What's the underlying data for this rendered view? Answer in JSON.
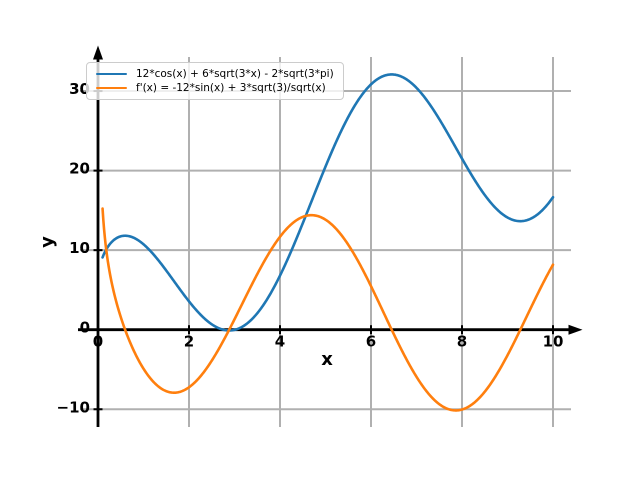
{
  "chart_data": {
    "type": "line",
    "title": "",
    "xlabel": "x",
    "ylabel": "y",
    "x_domain": [
      0.1,
      10
    ],
    "xlim": [
      -0.4,
      10.4
    ],
    "ylim": [
      -12.3,
      34.3
    ],
    "xticks": [
      0,
      2,
      4,
      6,
      8,
      10
    ],
    "xtick_labels": [
      "0",
      "2",
      "4",
      "6",
      "8",
      "10"
    ],
    "yticks": [
      -10,
      0,
      10,
      20,
      30
    ],
    "ytick_labels": [
      "−10",
      "0",
      "10",
      "20",
      "30"
    ],
    "grid": true,
    "grid_color": "#b0b0b0",
    "axis_color": "#000000",
    "background_color": "#ffffff",
    "legend": {
      "position": "upper left",
      "border_color": "#cccccc",
      "background": "rgba(255,255,255,0.8)"
    },
    "samples": 600,
    "series": [
      {
        "label": "12*cos(x) + 6*sqrt(3*x) - 2*sqrt(3*pi)",
        "color": "#1f77b4",
        "line_width": 2.6,
        "expr_js": "12*Math.cos(x) + 6*Math.sqrt(3*x) - 2*Math.sqrt(3*Math.PI)"
      },
      {
        "label": "f'(x) = -12*sin(x) + 3*sqrt(3)/sqrt(x)",
        "color": "#ff7f0e",
        "line_width": 2.6,
        "expr_js": "-12*Math.sin(x) + 3*Math.sqrt(3)/Math.sqrt(x)"
      }
    ],
    "sample_table": {
      "x": [
        0.1,
        1,
        2,
        3,
        4,
        5,
        6,
        7,
        8,
        9,
        10
      ],
      "f": [
        9.09,
        10.74,
        3.56,
        -0.02,
        6.8,
        20.5,
        30.84,
        30.4,
        21.51,
        14.1,
        16.65
      ],
      "f_prime": [
        15.23,
        -4.9,
        -7.24,
        1.31,
        11.68,
        13.83,
        5.47,
        -5.92,
        -10.04,
        -3.21,
        8.17
      ]
    }
  }
}
